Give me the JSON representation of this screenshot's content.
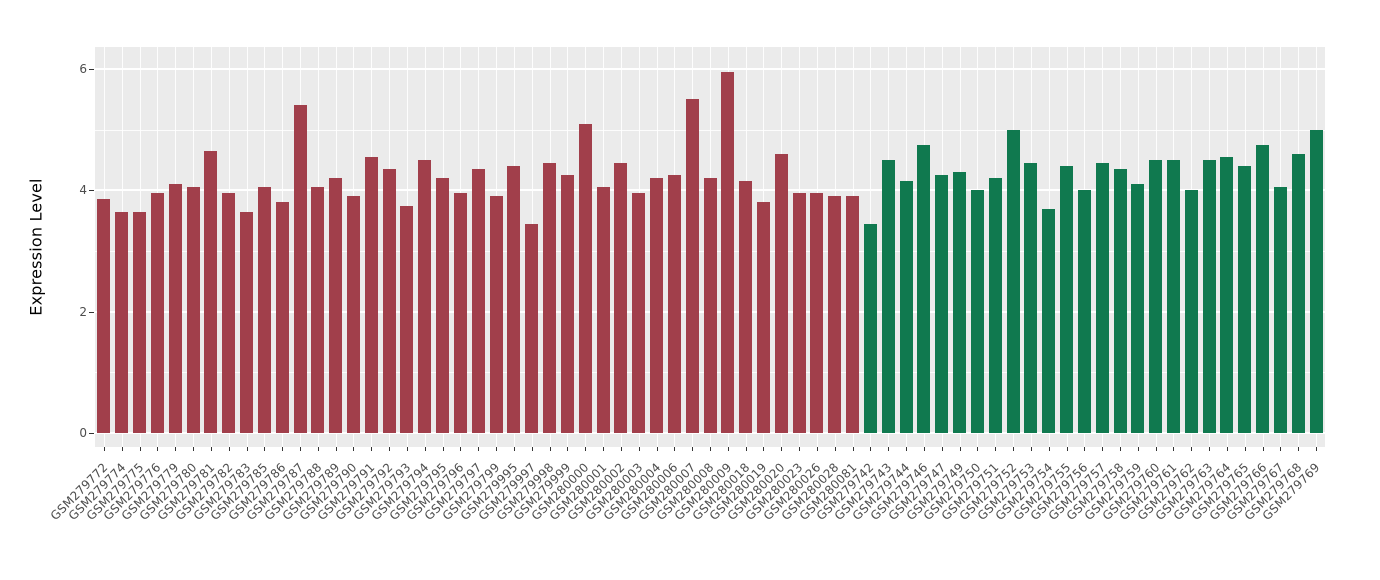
{
  "chart_data": {
    "type": "bar",
    "title": "",
    "xlabel": "",
    "ylabel": "Expression Level",
    "ylim": [
      0,
      6.2
    ],
    "yticks": [
      0,
      2,
      4,
      6
    ],
    "yticks_minor": [
      1,
      3,
      5
    ],
    "grid": "on",
    "legend": "none",
    "panel_background": "#EBEBEB",
    "group_colors": [
      "#A13F4B",
      "#10794F"
    ],
    "group_split_index": 43,
    "categories": [
      "GSM279772",
      "GSM279774",
      "GSM279775",
      "GSM279776",
      "GSM279779",
      "GSM279780",
      "GSM279781",
      "GSM279782",
      "GSM279783",
      "GSM279785",
      "GSM279786",
      "GSM279787",
      "GSM279788",
      "GSM279789",
      "GSM279790",
      "GSM279791",
      "GSM279792",
      "GSM279793",
      "GSM279794",
      "GSM279795",
      "GSM279796",
      "GSM279797",
      "GSM279799",
      "GSM279995",
      "GSM279997",
      "GSM279998",
      "GSM279999",
      "GSM280000",
      "GSM280001",
      "GSM280002",
      "GSM280003",
      "GSM280004",
      "GSM280006",
      "GSM280007",
      "GSM280008",
      "GSM280009",
      "GSM280018",
      "GSM280019",
      "GSM280020",
      "GSM280023",
      "GSM280026",
      "GSM280028",
      "GSM280081",
      "GSM279742",
      "GSM279743",
      "GSM279744",
      "GSM279746",
      "GSM279747",
      "GSM279749",
      "GSM279750",
      "GSM279751",
      "GSM279752",
      "GSM279753",
      "GSM279754",
      "GSM279755",
      "GSM279756",
      "GSM279757",
      "GSM279758",
      "GSM279759",
      "GSM279760",
      "GSM279761",
      "GSM279762",
      "GSM279763",
      "GSM279764",
      "GSM279765",
      "GSM279766",
      "GSM279767",
      "GSM279768",
      "GSM279769"
    ],
    "values": [
      3.85,
      3.65,
      3.65,
      3.95,
      4.1,
      4.05,
      4.65,
      3.95,
      3.65,
      4.05,
      3.8,
      5.4,
      4.05,
      4.2,
      3.9,
      4.55,
      4.35,
      3.75,
      4.5,
      4.2,
      3.95,
      4.35,
      3.9,
      4.4,
      3.45,
      4.45,
      4.25,
      5.1,
      4.05,
      4.45,
      3.95,
      4.2,
      4.25,
      5.5,
      4.2,
      5.95,
      4.15,
      3.8,
      4.6,
      3.95,
      3.95,
      3.9,
      3.9,
      3.45,
      4.5,
      4.15,
      4.75,
      4.25,
      4.3,
      4.0,
      4.2,
      5.0,
      4.45,
      3.7,
      4.4,
      4.0,
      4.45,
      4.35,
      4.1,
      4.5,
      4.5,
      4.0,
      4.5,
      4.55,
      4.4,
      4.75,
      4.05,
      4.6,
      5.0
    ]
  }
}
